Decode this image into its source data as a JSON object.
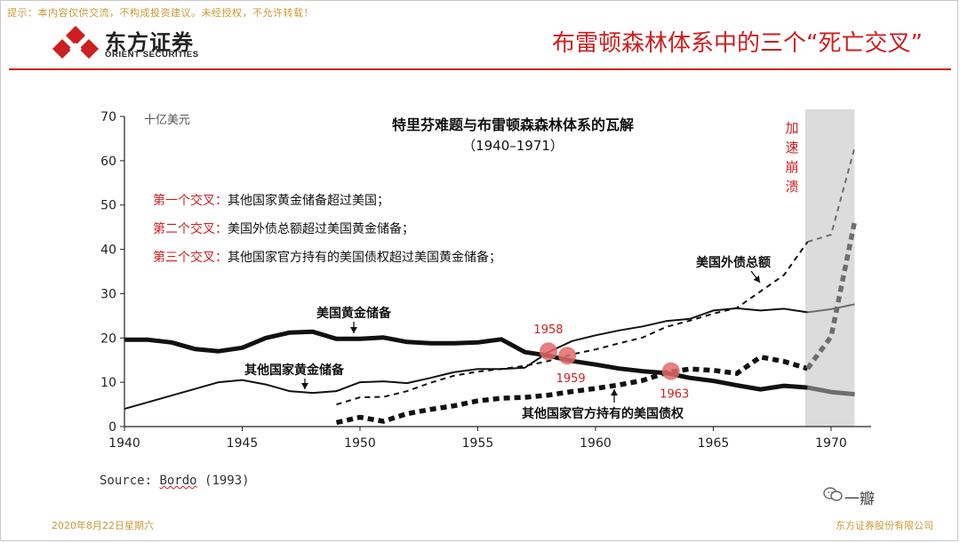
{
  "disclaimer": "提示：本内容仅供交流，不构成投资建议。未经授权，不允许转载！",
  "logo": {
    "cn": "东方证券",
    "en": "ORIENT SECURITIES",
    "name": "orient-securities-logo"
  },
  "slide_title": "布雷顿森林体系中的三个“死亡交叉”",
  "footer": {
    "date": "2020年8月22日星期六",
    "company": "东方证券股份有限公司"
  },
  "watermark": "一瓣",
  "source": {
    "prefix": "Source: ",
    "author": "Bordo",
    "suffix": " (1993)"
  },
  "colors": {
    "accent": "#cc1f1f",
    "gold": "#c89a3a",
    "shade": "#dcdcdc",
    "marker": "#e36a6a"
  },
  "chart_data": {
    "type": "line",
    "title": "特里芬难题与布雷顿森森林体系的瓦解",
    "subtitle": "（1940–1971）",
    "ylabel": "十亿美元",
    "xlim": [
      1940,
      1971.7
    ],
    "ylim": [
      0,
      70
    ],
    "xticks": [
      1940,
      1945,
      1950,
      1955,
      1960,
      1965,
      1970
    ],
    "yticks": [
      0,
      10,
      20,
      30,
      40,
      50,
      60,
      70
    ],
    "grid": false,
    "shaded_region": {
      "x": [
        1968.9,
        1971.0
      ],
      "label": "加速崩溃"
    },
    "annotations": [
      "第一个交叉：其他国家黄金储备超过美国；",
      "第二个交叉：美国外债总额超过美国黄金储备；",
      "第三个交叉：其他国家官方持有的美国债权超过美国黄金储备；"
    ],
    "annotation_prefixes": [
      "第一个交叉：",
      "第二个交叉：",
      "第三个交叉："
    ],
    "annotation_bodies": [
      "其他国家黄金储备超过美国；",
      "美国外债总额超过美国黄金储备；",
      "其他国家官方持有的美国债权超过美国黄金储备；"
    ],
    "crossings": [
      {
        "label": "1958",
        "x": 1958.0,
        "y": 17
      },
      {
        "label": "1959",
        "x": 1958.8,
        "y": 16
      },
      {
        "label": "1963",
        "x": 1963.2,
        "y": 12.5
      }
    ],
    "series": [
      {
        "name": "美国黄金储备",
        "style": "thick-solid",
        "x": [
          1940,
          1941,
          1942,
          1943,
          1944,
          1945,
          1946,
          1947,
          1948,
          1949,
          1950,
          1951,
          1952,
          1953,
          1954,
          1955,
          1956,
          1957,
          1958,
          1959,
          1960,
          1961,
          1962,
          1963,
          1964,
          1965,
          1966,
          1967,
          1968,
          1969,
          1970,
          1971
        ],
        "y": [
          19.6,
          19.6,
          19.0,
          17.5,
          17.0,
          17.8,
          20.0,
          21.2,
          21.4,
          19.8,
          19.8,
          20.1,
          19.1,
          18.8,
          18.8,
          19.0,
          19.7,
          16.8,
          16.0,
          14.8,
          14.0,
          13.1,
          12.5,
          12.1,
          11.0,
          10.3,
          9.3,
          8.4,
          9.2,
          8.8,
          7.8,
          7.3
        ]
      },
      {
        "name": "其他国家黄金储备",
        "style": "thin-solid",
        "x": [
          1940,
          1941,
          1942,
          1943,
          1944,
          1945,
          1946,
          1947,
          1948,
          1949,
          1950,
          1951,
          1952,
          1953,
          1954,
          1955,
          1956,
          1957,
          1958,
          1959,
          1960,
          1961,
          1962,
          1963,
          1964,
          1965,
          1966,
          1967,
          1968,
          1969,
          1970,
          1971
        ],
        "y": [
          4.0,
          5.5,
          7.0,
          8.5,
          10.0,
          10.5,
          9.5,
          8.0,
          7.6,
          8.0,
          10.0,
          10.2,
          9.8,
          11.0,
          12.3,
          13.0,
          13.0,
          13.3,
          16.8,
          19.3,
          20.6,
          21.7,
          22.6,
          23.8,
          24.3,
          26.2,
          26.7,
          26.2,
          26.6,
          25.8,
          26.5,
          27.6
        ]
      },
      {
        "name": "美国外债总额",
        "style": "thin-dashed",
        "x": [
          1949,
          1950,
          1951,
          1952,
          1953,
          1954,
          1955,
          1956,
          1957,
          1958,
          1959,
          1960,
          1961,
          1962,
          1963,
          1964,
          1965,
          1966,
          1967,
          1968,
          1969,
          1970,
          1971
        ],
        "y": [
          5.0,
          6.6,
          6.7,
          8.0,
          9.9,
          11.5,
          12.4,
          13.0,
          13.7,
          14.8,
          16.3,
          17.4,
          18.8,
          20.1,
          22.5,
          23.9,
          25.5,
          26.8,
          30.5,
          34.2,
          41.7,
          43.3,
          63.0
        ]
      },
      {
        "name": "其他国家官方持有的美国债权",
        "style": "thick-dotted",
        "x": [
          1949,
          1950,
          1951,
          1952,
          1953,
          1954,
          1955,
          1956,
          1957,
          1958,
          1959,
          1960,
          1961,
          1962,
          1963,
          1964,
          1965,
          1966,
          1967,
          1968,
          1969,
          1970,
          1971
        ],
        "y": [
          0.9,
          2.1,
          1.2,
          2.9,
          3.9,
          4.7,
          5.8,
          6.4,
          6.6,
          7.1,
          7.9,
          8.6,
          9.4,
          10.4,
          12.2,
          13.0,
          12.7,
          12.0,
          15.7,
          14.7,
          13.1,
          20.3,
          46.3
        ]
      }
    ]
  }
}
